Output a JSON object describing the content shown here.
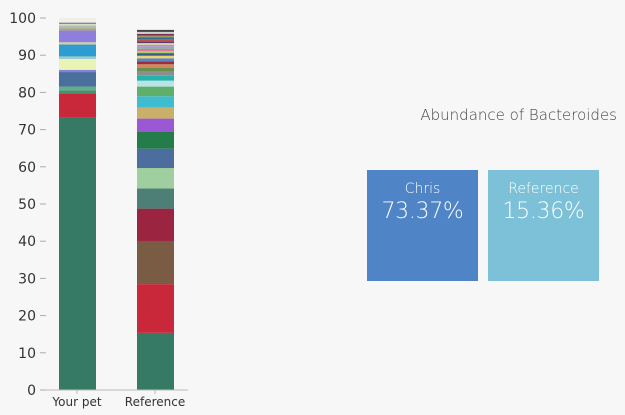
{
  "chart_data": {
    "type": "bar",
    "stacked": true,
    "categories": [
      "Your pet",
      "Reference"
    ],
    "ylim": [
      0,
      100
    ],
    "yticks": [
      0,
      10,
      20,
      30,
      40,
      50,
      60,
      70,
      80,
      90,
      100
    ],
    "grid": false,
    "stacks": [
      {
        "category": "Your pet",
        "segments": [
          {
            "value": 73.37,
            "color": "#367a66"
          },
          {
            "value": 6.2,
            "color": "#c9283a"
          },
          {
            "value": 1.0,
            "color": "#4a8f6c"
          },
          {
            "value": 1.0,
            "color": "#5fae8c"
          },
          {
            "value": 3.9,
            "color": "#4a6f9c"
          },
          {
            "value": 0.6,
            "color": "#8a7de0"
          },
          {
            "value": 2.9,
            "color": "#e9f3b3"
          },
          {
            "value": 0.7,
            "color": "#9acbd2"
          },
          {
            "value": 3.2,
            "color": "#2e9ccf"
          },
          {
            "value": 0.6,
            "color": "#d6d29a"
          },
          {
            "value": 3.2,
            "color": "#8f7fdd"
          },
          {
            "value": 0.5,
            "color": "#b9a06a"
          },
          {
            "value": 0.8,
            "color": "#a8bfb5"
          },
          {
            "value": 0.4,
            "color": "#e0dccb"
          },
          {
            "value": 0.4,
            "color": "#888888"
          },
          {
            "value": 1.23,
            "color": "#f0efe8"
          }
        ]
      },
      {
        "category": "Reference",
        "segments": [
          {
            "value": 15.36,
            "color": "#367a66"
          },
          {
            "value": 13.1,
            "color": "#c9283a"
          },
          {
            "value": 11.6,
            "color": "#7a5c45"
          },
          {
            "value": 8.7,
            "color": "#9b2440"
          },
          {
            "value": 5.4,
            "color": "#4d7f76"
          },
          {
            "value": 5.5,
            "color": "#9fcf9e"
          },
          {
            "value": 5.2,
            "color": "#4c6e9e"
          },
          {
            "value": 4.6,
            "color": "#237c4a"
          },
          {
            "value": 3.5,
            "color": "#9b58d4"
          },
          {
            "value": 3.0,
            "color": "#c9b06a"
          },
          {
            "value": 3.0,
            "color": "#3fbcd0"
          },
          {
            "value": 2.6,
            "color": "#5fae6a"
          },
          {
            "value": 1.6,
            "color": "#b9e3e6"
          },
          {
            "value": 1.3,
            "color": "#24b3ac"
          },
          {
            "value": 1.1,
            "color": "#8e8e8e"
          },
          {
            "value": 1.0,
            "color": "#6b8e4e"
          },
          {
            "value": 1.0,
            "color": "#d08a5a"
          },
          {
            "value": 0.8,
            "color": "#9e2d3c"
          },
          {
            "value": 0.8,
            "color": "#5a84c8"
          },
          {
            "value": 0.7,
            "color": "#e9d36a"
          },
          {
            "value": 0.7,
            "color": "#3d5a8c"
          },
          {
            "value": 0.6,
            "color": "#a4cf6a"
          },
          {
            "value": 0.6,
            "color": "#e46b9d"
          },
          {
            "value": 0.5,
            "color": "#6ec0a8"
          },
          {
            "value": 0.5,
            "color": "#b08fd6"
          },
          {
            "value": 0.5,
            "color": "#d9d0a8"
          },
          {
            "value": 0.5,
            "color": "#5c3d6e"
          },
          {
            "value": 0.5,
            "color": "#c44e4e"
          },
          {
            "value": 0.5,
            "color": "#2f6f8f"
          },
          {
            "value": 0.5,
            "color": "#9a9a6a"
          },
          {
            "value": 0.5,
            "color": "#7a2f4e"
          },
          {
            "value": 0.5,
            "color": "#cfcfcf"
          },
          {
            "value": 0.54,
            "color": "#444444"
          }
        ]
      }
    ]
  },
  "abundance": {
    "title": "Abundance of Bacteroides",
    "cards": [
      {
        "label": "Chris",
        "value": "73.37%",
        "color": "#4f84c6"
      },
      {
        "label": "Reference",
        "value": "15.36%",
        "color": "#7dc1d8"
      }
    ]
  }
}
